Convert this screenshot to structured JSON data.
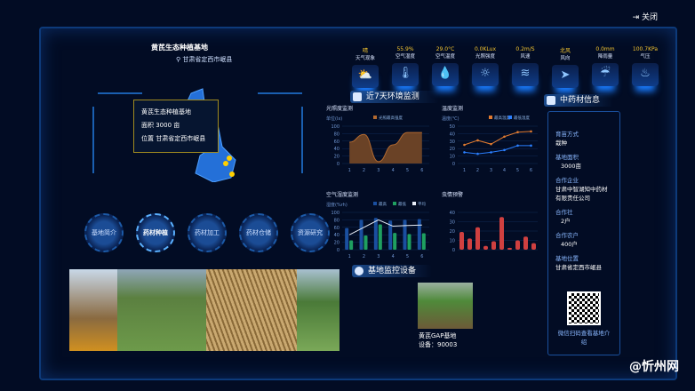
{
  "header": {
    "close_label": "关闭"
  },
  "base": {
    "title": "黄芪生态种植基地",
    "location": "甘肃省定西市岷县"
  },
  "tooltip": {
    "name": "黄芪生态种植基地",
    "area": "面积 3000 亩",
    "position": "位置 甘肃省定西市岷县"
  },
  "weather": [
    {
      "value": "晴",
      "label": "天气现象",
      "icon": "cloud-sun-icon",
      "glyph": "⛅"
    },
    {
      "value": "55.9%",
      "label": "空气湿度",
      "icon": "thermometer-icon",
      "glyph": "🌡"
    },
    {
      "value": "29.0°C",
      "label": "空气温度",
      "icon": "drops-icon",
      "glyph": "💧"
    },
    {
      "value": "0.0KLux",
      "label": "光照强度",
      "icon": "sun-icon",
      "glyph": "☼"
    },
    {
      "value": "0.2m/S",
      "label": "风速",
      "icon": "wind-icon",
      "glyph": "≋"
    },
    {
      "value": "北风",
      "label": "风向",
      "icon": "direction-icon",
      "glyph": "➤"
    },
    {
      "value": "0.0mm",
      "label": "降雨量",
      "icon": "rain-icon",
      "glyph": "☔"
    },
    {
      "value": "100.7KPa",
      "label": "气压",
      "icon": "pressure-icon",
      "glyph": "♨"
    }
  ],
  "nav": [
    "基地简介",
    "药材种植",
    "药材加工",
    "药材仓储",
    "资源研究"
  ],
  "nav_active": 1,
  "env_section": "近7天环境监测",
  "device_section": "基地监控设备",
  "device": {
    "name": "黄芪GAP基地",
    "id": "设备：90003"
  },
  "info_section": "中药材信息",
  "info": [
    {
      "k": "育苗方式",
      "v": "栽种"
    },
    {
      "k": "基地面积",
      "v": "3000亩"
    },
    {
      "k": "合作企业",
      "v": "甘肃中智湖知中药材有限责任公司"
    },
    {
      "k": "合作社",
      "v": "2户"
    },
    {
      "k": "合作农户",
      "v": "400户"
    },
    {
      "k": "基地位置",
      "v": "甘肃省定西市岷县"
    }
  ],
  "qr_caption": "微信扫码查看基地介绍",
  "watermark": "@忻州网",
  "chart_data": [
    {
      "type": "area",
      "title": "光照度监测",
      "ylabel": "单位(lx)",
      "x": [
        1,
        2,
        3,
        4,
        5,
        6
      ],
      "series": [
        {
          "name": "光照最高强度",
          "values": [
            57,
            78,
            5,
            50,
            83,
            83
          ]
        }
      ],
      "ylim": [
        0,
        100
      ],
      "yticks": [
        0,
        20,
        40,
        60,
        80,
        100
      ],
      "color": "#b46a30"
    },
    {
      "type": "line",
      "title": "温度监测",
      "ylabel": "温度(℃)",
      "x": [
        1,
        2,
        3,
        4,
        5,
        6
      ],
      "series": [
        {
          "name": "最高温度",
          "values": [
            25,
            31,
            26,
            36,
            42,
            43
          ],
          "color": "#e07a30"
        },
        {
          "name": "最低温度",
          "values": [
            15,
            13,
            15,
            18,
            24,
            24
          ],
          "color": "#2a7fff"
        }
      ],
      "ylim": [
        0,
        50
      ],
      "yticks": [
        0,
        10,
        20,
        30,
        40,
        50
      ]
    },
    {
      "type": "bar",
      "title": "空气湿度监测",
      "ylabel": "湿度(%rh)",
      "x": [
        1,
        2,
        3,
        4,
        5,
        6
      ],
      "series": [
        {
          "name": "最高",
          "values": [
            58,
            80,
            85,
            78,
            80,
            82
          ],
          "color": "#1a4fa0"
        },
        {
          "name": "最低",
          "values": [
            25,
            38,
            68,
            45,
            42,
            44
          ],
          "color": "#1fa060"
        },
        {
          "name": "平均",
          "values": [
            40,
            60,
            80,
            63,
            65,
            66
          ],
          "color": "#e8eef8"
        }
      ],
      "ylim": [
        0,
        100
      ],
      "yticks": [
        0,
        20,
        40,
        60,
        80,
        100
      ]
    },
    {
      "type": "bar",
      "title": "虫情预警",
      "values": [
        19,
        12,
        24,
        4,
        9,
        35,
        2,
        10,
        14,
        7
      ],
      "ylim": [
        0,
        40
      ],
      "yticks": [
        0,
        10,
        20,
        30,
        40
      ],
      "color": "#d04040"
    }
  ]
}
